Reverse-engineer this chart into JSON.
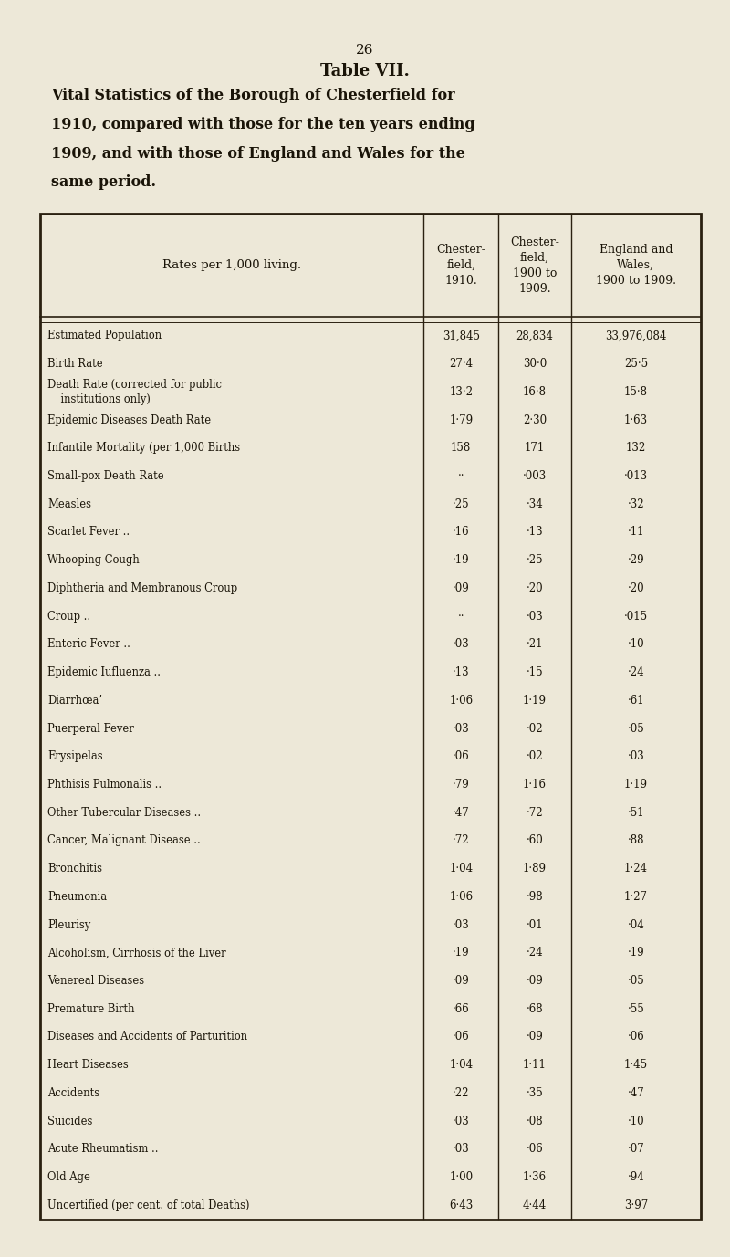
{
  "page_number": "26",
  "table_title": "Table VII.",
  "subtitle_lines": [
    "Vital Statistics of the Borough of Chesterfield for",
    "1910, compared with those for the ten years ending",
    "1909, and with those of England and Wales for the",
    "same period."
  ],
  "col_headers": [
    "Rates per 1,000 living.",
    "Chester-\nfield,\n1910.",
    "Chester-\nfield,\n1900 to\n1909.",
    "England and\nWales,\n1900 to 1909."
  ],
  "rows": [
    [
      "Estimated Population",
      "31,845",
      "28,834",
      "33,976,084"
    ],
    [
      "Birth Rate",
      "27·4",
      "30·0",
      "25·5"
    ],
    [
      "Death Rate (corrected for public\n    institutions only)",
      "13·2",
      "16·8",
      "15·8"
    ],
    [
      "Epidemic Diseases Death Rate",
      "1·79",
      "2·30",
      "1·63"
    ],
    [
      "Infantile Mortality (per 1,000 Births",
      "158",
      "171",
      "132"
    ],
    [
      "Small-pox Death Rate",
      "··",
      "·003",
      "·013"
    ],
    [
      "Measles",
      "·25",
      "·34",
      "·32"
    ],
    [
      "Scarlet Fever ..",
      "·16",
      "·13",
      "·11"
    ],
    [
      "Whooping Cough",
      "·19",
      "·25",
      "·29"
    ],
    [
      "Diphtheria and Membranous Croup",
      "·09",
      "·20",
      "·20"
    ],
    [
      "Croup ..",
      "··",
      "·03",
      "·015"
    ],
    [
      "Enteric Fever ..",
      "·03",
      "·21",
      "·10"
    ],
    [
      "Epidemic Iufluenza ..",
      "·13",
      "·15",
      "·24"
    ],
    [
      "Diarrhœa’",
      "1·06",
      "1·19",
      "·61"
    ],
    [
      "Puerperal Fever",
      "·03",
      "·02",
      "·05"
    ],
    [
      "Erysipelas",
      "·06",
      "·02",
      "·03"
    ],
    [
      "Phthisis Pulmonalis ..",
      "·79",
      "1·16",
      "1·19"
    ],
    [
      "Other Tubercular Diseases ..",
      "·47",
      "·72",
      "·51"
    ],
    [
      "Cancer, Malignant Disease ..",
      "·72",
      "·60",
      "·88"
    ],
    [
      "Bronchitis",
      "1·04",
      "1·89",
      "1·24"
    ],
    [
      "Pneumonia",
      "1·06",
      "·98",
      "1·27"
    ],
    [
      "Pleurisy",
      "·03",
      "·01",
      "·04"
    ],
    [
      "Alcoholism, Cirrhosis of the Liver",
      "·19",
      "·24",
      "·19"
    ],
    [
      "Venereal Diseases",
      "·09",
      "·09",
      "·05"
    ],
    [
      "Premature Birth",
      "·66",
      "·68",
      "·55"
    ],
    [
      "Diseases and Accidents of Parturition",
      "·06",
      "·09",
      "·06"
    ],
    [
      "Heart Diseases",
      "1·04",
      "1·11",
      "1·45"
    ],
    [
      "Accidents",
      "·22",
      "·35",
      "·47"
    ],
    [
      "Suicides",
      "·03",
      "·08",
      "·10"
    ],
    [
      "Acute Rheumatism ..",
      "·03",
      "·06",
      "·07"
    ],
    [
      "Old Age",
      "1·00",
      "1·36",
      "·94"
    ],
    [
      "Uncertified (per cent. of total Deaths)",
      "6·43",
      "4·44",
      "3·97"
    ]
  ],
  "bg_color": "#ede8d8",
  "text_color": "#1a1408",
  "line_color": "#2a2010",
  "font_family": "serif",
  "fig_width": 8.0,
  "fig_height": 13.77,
  "dpi": 100
}
